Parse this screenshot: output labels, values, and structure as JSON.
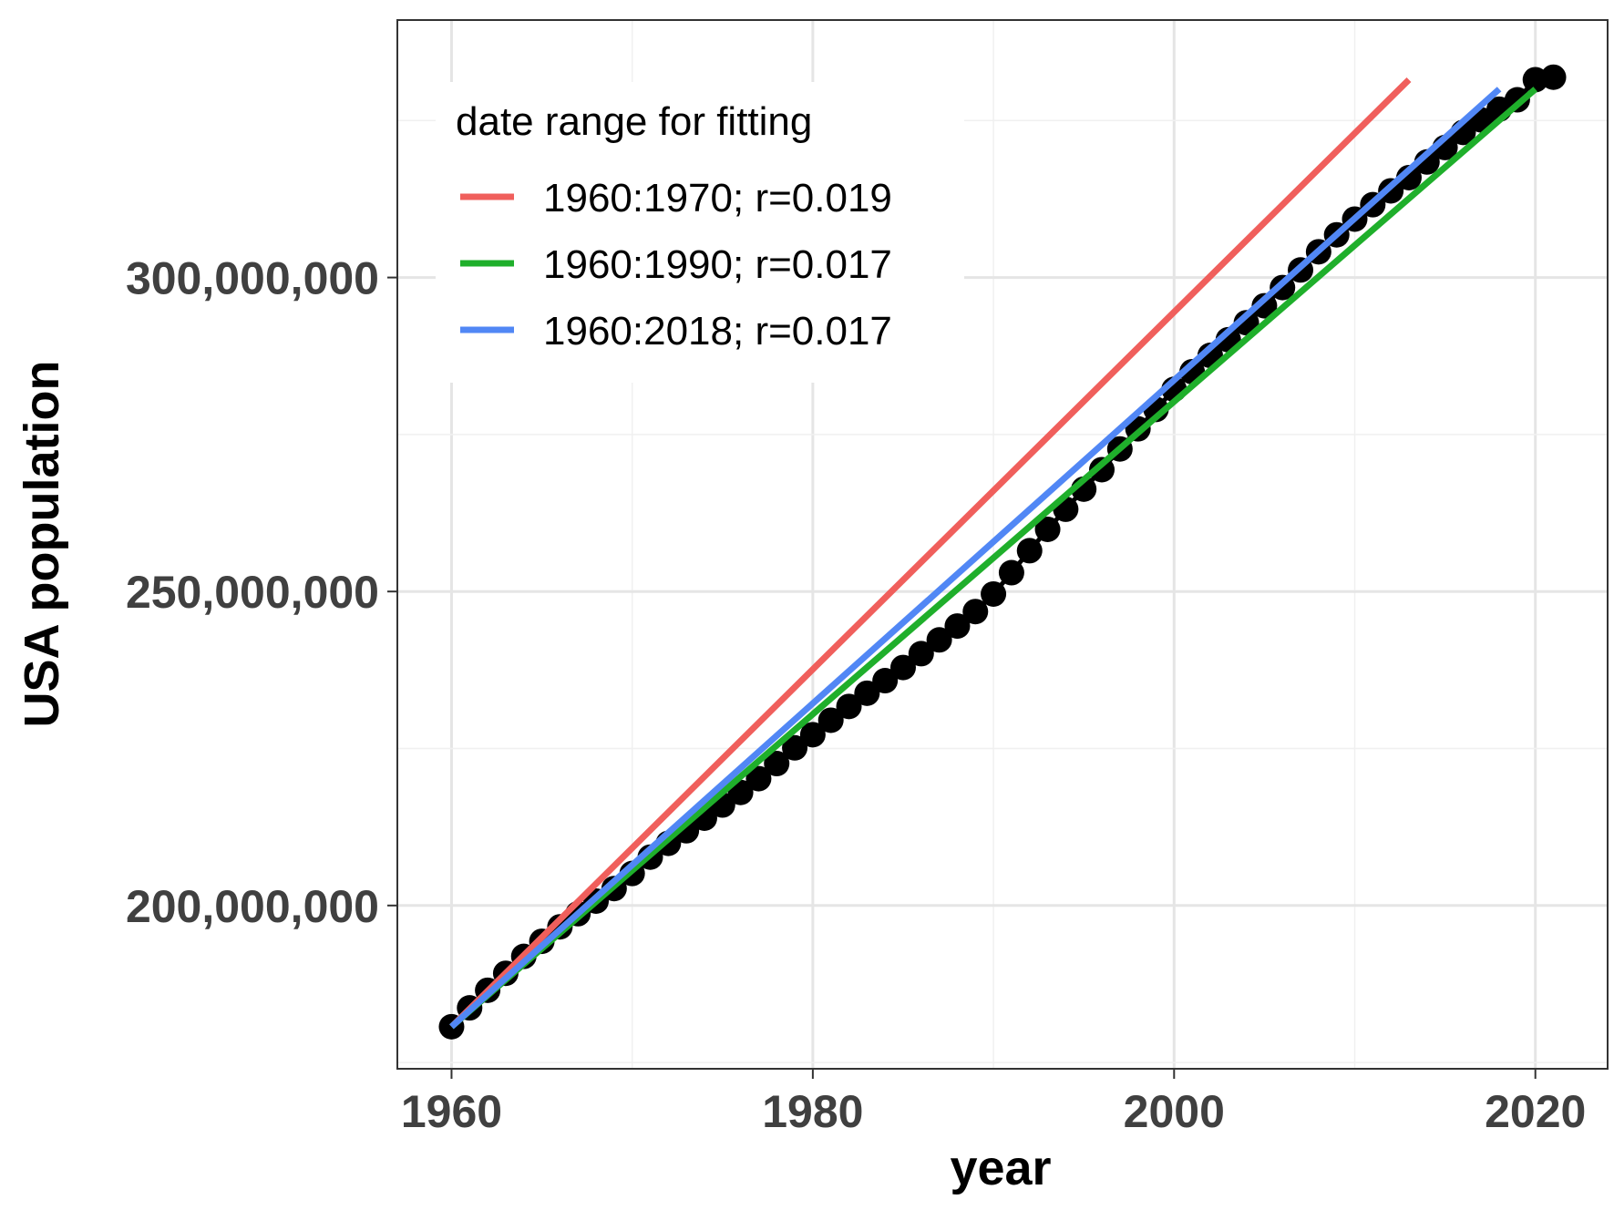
{
  "chart_data": {
    "type": "scatter",
    "xlabel": "year",
    "ylabel": "USA population",
    "x_ticks": [
      "1960",
      "1980",
      "2000",
      "2020"
    ],
    "x_tick_values": [
      1960,
      1980,
      2000,
      2020
    ],
    "y_ticks": [
      "200,000,000",
      "250,000,000",
      "300,000,000"
    ],
    "y_tick_values": [
      200000000,
      250000000,
      300000000
    ],
    "xlim": [
      1957,
      2024
    ],
    "ylim": [
      174000000,
      341000000
    ],
    "grid": true,
    "legend": {
      "title": "date range for fitting",
      "placement": "top-left"
    },
    "points": {
      "years": [
        1960,
        1961,
        1962,
        1963,
        1964,
        1965,
        1966,
        1967,
        1968,
        1969,
        1970,
        1971,
        1972,
        1973,
        1974,
        1975,
        1976,
        1977,
        1978,
        1979,
        1980,
        1981,
        1982,
        1983,
        1984,
        1985,
        1986,
        1987,
        1988,
        1989,
        1990,
        1991,
        1992,
        1993,
        1994,
        1995,
        1996,
        1997,
        1998,
        1999,
        2000,
        2001,
        2002,
        2003,
        2004,
        2005,
        2006,
        2007,
        2008,
        2009,
        2010,
        2011,
        2012,
        2013,
        2014,
        2015,
        2016,
        2017,
        2018,
        2019,
        2020,
        2021
      ],
      "population": [
        180700000,
        183700000,
        186500000,
        189200000,
        191900000,
        194300000,
        196600000,
        198700000,
        200700000,
        202700000,
        205100000,
        207700000,
        209900000,
        211900000,
        213900000,
        216000000,
        218000000,
        220200000,
        222600000,
        225100000,
        227200000,
        229500000,
        231700000,
        233800000,
        235800000,
        237900000,
        240100000,
        242300000,
        244500000,
        246800000,
        249600000,
        253000000,
        256500000,
        259900000,
        263100000,
        266300000,
        269400000,
        272700000,
        275900000,
        279000000,
        282200000,
        285000000,
        287600000,
        290100000,
        292800000,
        295500000,
        298400000,
        301200000,
        304100000,
        306800000,
        309300000,
        311600000,
        313800000,
        315900000,
        318400000,
        320700000,
        323100000,
        325100000,
        326800000,
        328300000,
        331500000,
        331900000
      ],
      "color": "#000000"
    },
    "series": [
      {
        "name": "1960:1970; r=0.019",
        "color": "#F05F5C",
        "x": [
          1960,
          2013
        ],
        "y": [
          180700000,
          331500000
        ]
      },
      {
        "name": "1960:1990; r=0.017",
        "color": "#1FAF2B",
        "x": [
          1960,
          2020
        ],
        "y": [
          180700000,
          330000000
        ]
      },
      {
        "name": "1960:2018; r=0.017",
        "color": "#5187F5",
        "x": [
          1960,
          2018
        ],
        "y": [
          180700000,
          330000000
        ]
      }
    ]
  }
}
